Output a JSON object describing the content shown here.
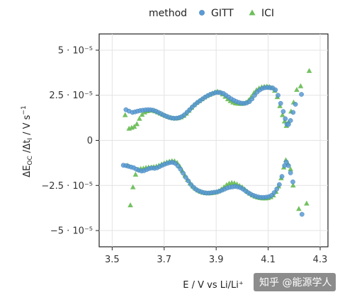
{
  "chart_data": {
    "type": "scatter",
    "xlabel": "E / V vs Li/Li⁺",
    "ylabel_main": "ΔE",
    "ylabel_sub1": "OC",
    "ylabel_mid": " /Δt",
    "ylabel_sub2": "I",
    "ylabel_unit": "  / V s",
    "ylabel_sup": "−1",
    "xlim": [
      3.45,
      4.33
    ],
    "ylim": [
      -5.9e-05,
      5.9e-05
    ],
    "xticks": [
      3.5,
      3.7,
      3.9,
      4.1,
      4.3
    ],
    "xtick_labels": [
      "3.5",
      "3.7",
      "3.9",
      "4.1",
      "4.3"
    ],
    "yticks": [
      5e-05,
      2.5e-05,
      0,
      -2.5e-05,
      -5e-05
    ],
    "ytick_labels": [
      "5 · 10⁻⁵",
      "2.5 · 10⁻⁵",
      "0",
      "−2.5 · 10⁻⁵",
      "−5 · 10⁻⁵"
    ],
    "grid": true,
    "legend": {
      "title": "method",
      "placement": "top",
      "entries": [
        {
          "label": "GITT",
          "marker": "circle",
          "color": "#5B9BD5"
        },
        {
          "label": "ICI",
          "marker": "triangle",
          "color": "#6DBE5A"
        }
      ]
    },
    "series": [
      {
        "name": "GITT",
        "marker": "circle",
        "color": "#5B9BD5",
        "points": [
          [
            3.553,
            1.7e-05
          ],
          [
            3.565,
            1.62e-05
          ],
          [
            3.578,
            1.55e-05
          ],
          [
            3.588,
            1.58e-05
          ],
          [
            3.598,
            1.62e-05
          ],
          [
            3.608,
            1.65e-05
          ],
          [
            3.618,
            1.67e-05
          ],
          [
            3.628,
            1.69e-05
          ],
          [
            3.638,
            1.7e-05
          ],
          [
            3.648,
            1.69e-05
          ],
          [
            3.658,
            1.67e-05
          ],
          [
            3.668,
            1.62e-05
          ],
          [
            3.678,
            1.55e-05
          ],
          [
            3.688,
            1.48e-05
          ],
          [
            3.698,
            1.4e-05
          ],
          [
            3.708,
            1.34e-05
          ],
          [
            3.718,
            1.28e-05
          ],
          [
            3.728,
            1.24e-05
          ],
          [
            3.738,
            1.22e-05
          ],
          [
            3.748,
            1.23e-05
          ],
          [
            3.758,
            1.26e-05
          ],
          [
            3.768,
            1.32e-05
          ],
          [
            3.778,
            1.42e-05
          ],
          [
            3.788,
            1.56e-05
          ],
          [
            3.798,
            1.7e-05
          ],
          [
            3.808,
            1.85e-05
          ],
          [
            3.818,
            1.98e-05
          ],
          [
            3.828,
            2.1e-05
          ],
          [
            3.838,
            2.2e-05
          ],
          [
            3.848,
            2.3e-05
          ],
          [
            3.858,
            2.4e-05
          ],
          [
            3.868,
            2.48e-05
          ],
          [
            3.878,
            2.55e-05
          ],
          [
            3.888,
            2.6e-05
          ],
          [
            3.898,
            2.65e-05
          ],
          [
            3.908,
            2.66e-05
          ],
          [
            3.918,
            2.64e-05
          ],
          [
            3.928,
            2.6e-05
          ],
          [
            3.938,
            2.5e-05
          ],
          [
            3.948,
            2.4e-05
          ],
          [
            3.958,
            2.3e-05
          ],
          [
            3.968,
            2.22e-05
          ],
          [
            3.978,
            2.15e-05
          ],
          [
            3.988,
            2.1e-05
          ],
          [
            3.998,
            2.06e-05
          ],
          [
            4.008,
            2.05e-05
          ],
          [
            4.018,
            2.08e-05
          ],
          [
            4.028,
            2.15e-05
          ],
          [
            4.038,
            2.3e-05
          ],
          [
            4.048,
            2.5e-05
          ],
          [
            4.058,
            2.68e-05
          ],
          [
            4.068,
            2.8e-05
          ],
          [
            4.078,
            2.88e-05
          ],
          [
            4.088,
            2.92e-05
          ],
          [
            4.098,
            2.93e-05
          ],
          [
            4.108,
            2.92e-05
          ],
          [
            4.118,
            2.9e-05
          ],
          [
            4.128,
            2.8e-05
          ],
          [
            4.138,
            2.5e-05
          ],
          [
            4.148,
            2.05e-05
          ],
          [
            4.158,
            1.6e-05
          ],
          [
            4.166,
            1.2e-05
          ],
          [
            4.172,
            9e-06
          ],
          [
            4.178,
            8.8e-06
          ],
          [
            4.186,
            1.1e-05
          ],
          [
            4.196,
            1.55e-05
          ],
          [
            4.205,
            2e-05
          ],
          [
            4.228,
            2.55e-05
          ],
          [
            3.543,
            -1.38e-05
          ],
          [
            3.553,
            -1.4e-05
          ],
          [
            3.563,
            -1.44e-05
          ],
          [
            3.573,
            -1.48e-05
          ],
          [
            3.583,
            -1.52e-05
          ],
          [
            3.593,
            -1.6e-05
          ],
          [
            3.603,
            -1.66e-05
          ],
          [
            3.613,
            -1.7e-05
          ],
          [
            3.623,
            -1.68e-05
          ],
          [
            3.633,
            -1.62e-05
          ],
          [
            3.643,
            -1.56e-05
          ],
          [
            3.653,
            -1.53e-05
          ],
          [
            3.663,
            -1.55e-05
          ],
          [
            3.673,
            -1.52e-05
          ],
          [
            3.683,
            -1.45e-05
          ],
          [
            3.693,
            -1.38e-05
          ],
          [
            3.703,
            -1.32e-05
          ],
          [
            3.713,
            -1.27e-05
          ],
          [
            3.723,
            -1.23e-05
          ],
          [
            3.733,
            -1.22e-05
          ],
          [
            3.743,
            -1.28e-05
          ],
          [
            3.753,
            -1.42e-05
          ],
          [
            3.763,
            -1.6e-05
          ],
          [
            3.773,
            -1.82e-05
          ],
          [
            3.783,
            -2.05e-05
          ],
          [
            3.793,
            -2.25e-05
          ],
          [
            3.803,
            -2.45e-05
          ],
          [
            3.813,
            -2.6e-05
          ],
          [
            3.823,
            -2.72e-05
          ],
          [
            3.833,
            -2.8e-05
          ],
          [
            3.843,
            -2.86e-05
          ],
          [
            3.853,
            -2.9e-05
          ],
          [
            3.863,
            -2.92e-05
          ],
          [
            3.873,
            -2.92e-05
          ],
          [
            3.883,
            -2.9e-05
          ],
          [
            3.893,
            -2.88e-05
          ],
          [
            3.903,
            -2.86e-05
          ],
          [
            3.913,
            -2.82e-05
          ],
          [
            3.923,
            -2.76e-05
          ],
          [
            3.933,
            -2.7e-05
          ],
          [
            3.943,
            -2.64e-05
          ],
          [
            3.953,
            -2.6e-05
          ],
          [
            3.963,
            -2.58e-05
          ],
          [
            3.973,
            -2.55e-05
          ],
          [
            3.983,
            -2.58e-05
          ],
          [
            3.993,
            -2.62e-05
          ],
          [
            4.003,
            -2.7e-05
          ],
          [
            4.013,
            -2.8e-05
          ],
          [
            4.023,
            -2.9e-05
          ],
          [
            4.033,
            -2.98e-05
          ],
          [
            4.043,
            -3.05e-05
          ],
          [
            4.053,
            -3.1e-05
          ],
          [
            4.063,
            -3.14e-05
          ],
          [
            4.073,
            -3.16e-05
          ],
          [
            4.083,
            -3.16e-05
          ],
          [
            4.093,
            -3.15e-05
          ],
          [
            4.103,
            -3.12e-05
          ],
          [
            4.113,
            -3.05e-05
          ],
          [
            4.123,
            -2.9e-05
          ],
          [
            4.133,
            -2.7e-05
          ],
          [
            4.143,
            -2.45e-05
          ],
          [
            4.153,
            -2e-05
          ],
          [
            4.163,
            -1.4e-05
          ],
          [
            4.17,
            -1.2e-05
          ],
          [
            4.178,
            -1.4e-05
          ],
          [
            4.186,
            -1.8e-05
          ],
          [
            4.195,
            -2.3e-05
          ],
          [
            4.23,
            -4.1e-05
          ]
        ]
      },
      {
        "name": "ICI",
        "marker": "triangle",
        "color": "#6DBE5A",
        "points": [
          [
            3.55,
            1.4e-05
          ],
          [
            3.565,
            6.5e-06
          ],
          [
            3.575,
            7e-06
          ],
          [
            3.585,
            7.5e-06
          ],
          [
            3.595,
            9e-06
          ],
          [
            3.605,
            1.2e-05
          ],
          [
            3.615,
            1.42e-05
          ],
          [
            3.625,
            1.55e-05
          ],
          [
            3.635,
            1.62e-05
          ],
          [
            3.645,
            1.66e-05
          ],
          [
            3.655,
            1.65e-05
          ],
          [
            3.665,
            1.61e-05
          ],
          [
            3.675,
            1.55e-05
          ],
          [
            3.685,
            1.48e-05
          ],
          [
            3.695,
            1.42e-05
          ],
          [
            3.705,
            1.36e-05
          ],
          [
            3.715,
            1.3e-05
          ],
          [
            3.725,
            1.25e-05
          ],
          [
            3.735,
            1.22e-05
          ],
          [
            3.745,
            1.21e-05
          ],
          [
            3.755,
            1.23e-05
          ],
          [
            3.765,
            1.28e-05
          ],
          [
            3.775,
            1.36e-05
          ],
          [
            3.785,
            1.48e-05
          ],
          [
            3.795,
            1.64e-05
          ],
          [
            3.805,
            1.8e-05
          ],
          [
            3.815,
            1.95e-05
          ],
          [
            3.825,
            2.08e-05
          ],
          [
            3.835,
            2.18e-05
          ],
          [
            3.845,
            2.28e-05
          ],
          [
            3.855,
            2.38e-05
          ],
          [
            3.865,
            2.46e-05
          ],
          [
            3.875,
            2.53e-05
          ],
          [
            3.885,
            2.6e-05
          ],
          [
            3.895,
            2.66e-05
          ],
          [
            3.905,
            2.7e-05
          ],
          [
            3.915,
            2.66e-05
          ],
          [
            3.925,
            2.55e-05
          ],
          [
            3.935,
            2.42e-05
          ],
          [
            3.945,
            2.28e-05
          ],
          [
            3.955,
            2.18e-05
          ],
          [
            3.965,
            2.1e-05
          ],
          [
            3.975,
            2.05e-05
          ],
          [
            3.985,
            2.03e-05
          ],
          [
            3.995,
            2.02e-05
          ],
          [
            4.005,
            2.04e-05
          ],
          [
            4.015,
            2.1e-05
          ],
          [
            4.025,
            2.22e-05
          ],
          [
            4.035,
            2.4e-05
          ],
          [
            4.045,
            2.62e-05
          ],
          [
            4.055,
            2.78e-05
          ],
          [
            4.065,
            2.88e-05
          ],
          [
            4.075,
            2.94e-05
          ],
          [
            4.085,
            2.97e-05
          ],
          [
            4.095,
            2.98e-05
          ],
          [
            4.105,
            2.96e-05
          ],
          [
            4.115,
            2.9e-05
          ],
          [
            4.125,
            2.75e-05
          ],
          [
            4.135,
            2.4e-05
          ],
          [
            4.145,
            1.9e-05
          ],
          [
            4.155,
            1.4e-05
          ],
          [
            4.163,
            1.05e-05
          ],
          [
            4.17,
            8e-06
          ],
          [
            4.178,
            1e-05
          ],
          [
            4.188,
            1.6e-05
          ],
          [
            4.198,
            2.1e-05
          ],
          [
            4.21,
            2.8e-05
          ],
          [
            4.225,
            3e-05
          ],
          [
            4.258,
            3.85e-05
          ],
          [
            3.56,
            -1.4e-05
          ],
          [
            3.57,
            -3.6e-05
          ],
          [
            3.58,
            -2.6e-05
          ],
          [
            3.59,
            -1.9e-05
          ],
          [
            3.6,
            -1.62e-05
          ],
          [
            3.61,
            -1.58e-05
          ],
          [
            3.62,
            -1.56e-05
          ],
          [
            3.63,
            -1.52e-05
          ],
          [
            3.64,
            -1.5e-05
          ],
          [
            3.65,
            -1.5e-05
          ],
          [
            3.66,
            -1.48e-05
          ],
          [
            3.67,
            -1.45e-05
          ],
          [
            3.68,
            -1.4e-05
          ],
          [
            3.69,
            -1.33e-05
          ],
          [
            3.7,
            -1.27e-05
          ],
          [
            3.71,
            -1.22e-05
          ],
          [
            3.72,
            -1.18e-05
          ],
          [
            3.73,
            -1.15e-05
          ],
          [
            3.74,
            -1.16e-05
          ],
          [
            3.75,
            -1.25e-05
          ],
          [
            3.76,
            -1.45e-05
          ],
          [
            3.77,
            -1.7e-05
          ],
          [
            3.78,
            -1.95e-05
          ],
          [
            3.79,
            -2.18e-05
          ],
          [
            3.8,
            -2.38e-05
          ],
          [
            3.81,
            -2.55e-05
          ],
          [
            3.82,
            -2.68e-05
          ],
          [
            3.83,
            -2.78e-05
          ],
          [
            3.84,
            -2.85e-05
          ],
          [
            3.85,
            -2.9e-05
          ],
          [
            3.86,
            -2.93e-05
          ],
          [
            3.87,
            -2.94e-05
          ],
          [
            3.88,
            -2.93e-05
          ],
          [
            3.89,
            -2.91e-05
          ],
          [
            3.9,
            -2.88e-05
          ],
          [
            3.91,
            -2.82e-05
          ],
          [
            3.92,
            -2.72e-05
          ],
          [
            3.93,
            -2.6e-05
          ],
          [
            3.94,
            -2.48e-05
          ],
          [
            3.95,
            -2.4e-05
          ],
          [
            3.96,
            -2.36e-05
          ],
          [
            3.97,
            -2.38e-05
          ],
          [
            3.98,
            -2.44e-05
          ],
          [
            3.99,
            -2.52e-05
          ],
          [
            4.0,
            -2.6e-05
          ],
          [
            4.01,
            -2.72e-05
          ],
          [
            4.02,
            -2.85e-05
          ],
          [
            4.03,
            -2.96e-05
          ],
          [
            4.04,
            -3.05e-05
          ],
          [
            4.05,
            -3.12e-05
          ],
          [
            4.06,
            -3.17e-05
          ],
          [
            4.07,
            -3.2e-05
          ],
          [
            4.08,
            -3.22e-05
          ],
          [
            4.09,
            -3.22e-05
          ],
          [
            4.1,
            -3.2e-05
          ],
          [
            4.11,
            -3.15e-05
          ],
          [
            4.12,
            -3.05e-05
          ],
          [
            4.13,
            -2.85e-05
          ],
          [
            4.14,
            -2.55e-05
          ],
          [
            4.15,
            -2.1e-05
          ],
          [
            4.16,
            -1.5e-05
          ],
          [
            4.168,
            -1.1e-05
          ],
          [
            4.176,
            -1.3e-05
          ],
          [
            4.186,
            -1.6e-05
          ],
          [
            4.196,
            -2.5e-05
          ],
          [
            4.218,
            -3.8e-05
          ],
          [
            4.248,
            -3.5e-05
          ]
        ]
      }
    ]
  },
  "watermark": {
    "text": "知乎 @能源学人"
  }
}
